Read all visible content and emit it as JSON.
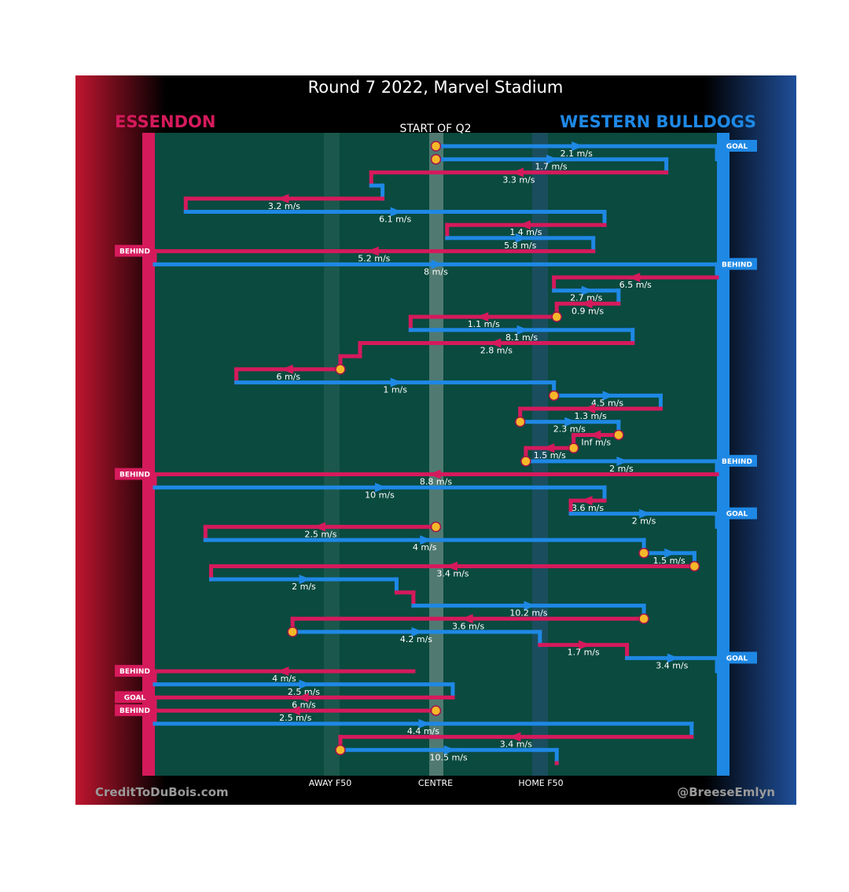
{
  "chart_data": {
    "type": "flow",
    "title": "Round 7 2022, Marvel Stadium",
    "subtitle": "START OF Q2",
    "teams": {
      "home": "ESSENDON",
      "away": "WESTERN BULLDOGS"
    },
    "colors": {
      "essendon": "#d51a5c",
      "bulldogs": "#1e88e5",
      "field": "#0a4a3f",
      "marker": "#f5b829",
      "label_bg": "#ffffff"
    },
    "axis": {
      "domain": [
        -1,
        1
      ],
      "ticks": [
        {
          "pos": -0.6,
          "label": "AWAY F50"
        },
        {
          "pos": 0.0,
          "label": "CENTRE"
        },
        {
          "pos": 0.6,
          "label": "HOME F50"
        }
      ]
    },
    "footer": {
      "left": "CreditToDuBois.com",
      "right": "@BreeseEmlyn"
    },
    "events": [
      {
        "team": "bulldogs",
        "x1": 0.0,
        "x2": 1.0,
        "speed": "2.1 m/s",
        "start_marker": true,
        "outcome": "GOAL"
      },
      {
        "team": "bulldogs",
        "x1": 0.0,
        "x2": 0.82,
        "speed": "1.7 m/s",
        "start_marker": true
      },
      {
        "team": "essendon",
        "x1": 0.82,
        "x2": -0.23,
        "speed": "3.3 m/s"
      },
      {
        "team": "bulldogs",
        "x1": -0.23,
        "x2": -0.19,
        "speed": ""
      },
      {
        "team": "essendon",
        "x1": -0.19,
        "x2": -0.89,
        "speed": "3.2 m/s"
      },
      {
        "team": "bulldogs",
        "x1": -0.89,
        "x2": 0.6,
        "speed": "6.1 m/s"
      },
      {
        "team": "essendon",
        "x1": 0.6,
        "x2": 0.04,
        "speed": "1.4 m/s"
      },
      {
        "team": "bulldogs",
        "x1": 0.04,
        "x2": 0.56,
        "speed": "5.8 m/s"
      },
      {
        "team": "essendon",
        "x1": 0.56,
        "x2": -1.0,
        "speed": "5.2 m/s",
        "outcome": "BEHIND"
      },
      {
        "team": "bulldogs",
        "x1": -1.0,
        "x2": 1.0,
        "speed": "8 m/s",
        "outcome": "BEHIND"
      },
      {
        "team": "essendon",
        "x1": 1.0,
        "x2": 0.42,
        "speed": "6.5 m/s"
      },
      {
        "team": "bulldogs",
        "x1": 0.42,
        "x2": 0.65,
        "speed": "2.7 m/s"
      },
      {
        "team": "essendon",
        "x1": 0.65,
        "x2": 0.43,
        "speed": "0.9 m/s"
      },
      {
        "team": "essendon",
        "x1": 0.43,
        "x2": -0.09,
        "speed": "1.1 m/s",
        "start_marker": true
      },
      {
        "team": "bulldogs",
        "x1": -0.09,
        "x2": 0.7,
        "speed": "8.1 m/s"
      },
      {
        "team": "essendon",
        "x1": 0.7,
        "x2": -0.27,
        "speed": "2.8 m/s"
      },
      {
        "team": "essendon",
        "x1": -0.27,
        "x2": -0.34,
        "speed": ""
      },
      {
        "team": "essendon",
        "x1": -0.34,
        "x2": -0.71,
        "speed": "6 m/s",
        "start_marker": true
      },
      {
        "team": "bulldogs",
        "x1": -0.71,
        "x2": 0.42,
        "speed": "1 m/s"
      },
      {
        "team": "bulldogs",
        "x1": 0.42,
        "x2": 0.8,
        "speed": "4.5 m/s",
        "start_marker": true
      },
      {
        "team": "essendon",
        "x1": 0.8,
        "x2": 0.3,
        "speed": "1.3 m/s"
      },
      {
        "team": "bulldogs",
        "x1": 0.3,
        "x2": 0.65,
        "speed": "2.3 m/s",
        "start_marker": true
      },
      {
        "team": "essendon",
        "x1": 0.65,
        "x2": 0.49,
        "speed": "Inf m/s",
        "start_marker": true
      },
      {
        "team": "essendon",
        "x1": 0.49,
        "x2": 0.32,
        "speed": "1.5 m/s",
        "start_marker": true
      },
      {
        "team": "bulldogs",
        "x1": 0.32,
        "x2": 1.0,
        "speed": "2 m/s",
        "start_marker": true,
        "outcome": "BEHIND"
      },
      {
        "team": "essendon",
        "x1": 1.0,
        "x2": -1.0,
        "speed": "8.8 m/s",
        "outcome": "BEHIND"
      },
      {
        "team": "bulldogs",
        "x1": -1.0,
        "x2": 0.6,
        "speed": "10 m/s"
      },
      {
        "team": "essendon",
        "x1": 0.6,
        "x2": 0.48,
        "speed": "3.6 m/s"
      },
      {
        "team": "bulldogs",
        "x1": 0.48,
        "x2": 1.0,
        "speed": "2 m/s",
        "outcome": "GOAL"
      },
      {
        "team": "essendon",
        "x1": 0.0,
        "x2": -0.82,
        "speed": "2.5 m/s",
        "start_marker": true
      },
      {
        "team": "bulldogs",
        "x1": -0.82,
        "x2": 0.74,
        "speed": "4 m/s"
      },
      {
        "team": "bulldogs",
        "x1": 0.74,
        "x2": 0.92,
        "speed": "1.5 m/s",
        "start_marker": true
      },
      {
        "team": "essendon",
        "x1": 0.92,
        "x2": -0.8,
        "speed": "3.4 m/s",
        "start_marker": true
      },
      {
        "team": "bulldogs",
        "x1": -0.8,
        "x2": -0.14,
        "speed": "2 m/s"
      },
      {
        "team": "essendon",
        "x1": -0.14,
        "x2": -0.08,
        "speed": ""
      },
      {
        "team": "bulldogs",
        "x1": -0.08,
        "x2": 0.74,
        "speed": "10.2 m/s"
      },
      {
        "team": "essendon",
        "x1": 0.74,
        "x2": -0.51,
        "speed": "3.6 m/s",
        "start_marker": true
      },
      {
        "team": "bulldogs",
        "x1": -0.51,
        "x2": 0.37,
        "speed": "4.2 m/s",
        "start_marker": true
      },
      {
        "team": "essendon",
        "x1": 0.37,
        "x2": 0.68,
        "speed": "1.7 m/s"
      },
      {
        "team": "bulldogs",
        "x1": 0.68,
        "x2": 1.0,
        "speed": "3.4 m/s",
        "outcome": "GOAL"
      },
      {
        "team": "essendon",
        "x1": -0.08,
        "x2": -1.0,
        "speed": "4 m/s",
        "outcome": "BEHIND"
      },
      {
        "team": "bulldogs",
        "x1": -1.0,
        "x2": 0.06,
        "speed": "2.5 m/s"
      },
      {
        "team": "essendon",
        "x1": 0.06,
        "x2": -1.0,
        "speed": "6 m/s",
        "outcome": "GOAL"
      },
      {
        "team": "essendon",
        "x1": 0.0,
        "x2": -1.0,
        "speed": "2.5 m/s",
        "start_marker": true,
        "outcome": "BEHIND"
      },
      {
        "team": "bulldogs",
        "x1": -1.0,
        "x2": 0.91,
        "speed": "4.4 m/s"
      },
      {
        "team": "essendon",
        "x1": 0.91,
        "x2": -0.34,
        "speed": "3.4 m/s"
      },
      {
        "team": "bulldogs",
        "x1": -0.34,
        "x2": 0.43,
        "speed": "10.5 m/s",
        "start_marker": true
      },
      {
        "team": "essendon",
        "x1": 0.43,
        "x2": 0.43,
        "speed": ""
      }
    ]
  }
}
